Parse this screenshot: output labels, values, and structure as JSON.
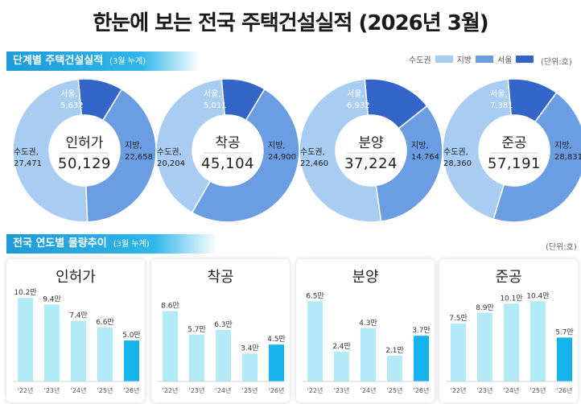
{
  "title": "한눈에 보는 전국 주택건설실적 (2026년 3월)",
  "section1": {
    "title": "단계별 주택건설실적",
    "sub": "(3월 누계)",
    "unit": "(단위:호)"
  },
  "section2": {
    "title": "전국 연도별 물량추이",
    "sub": "(3월 누계)",
    "unit": "(단위:호)"
  },
  "legend": [
    {
      "name": "수도권",
      "color": "#a9ccf2"
    },
    {
      "name": "지방",
      "color": "#6b9de3"
    },
    {
      "name": "서울",
      "color": "#3366c8"
    }
  ],
  "chart_data": [
    {
      "type": "pie",
      "title": "인허가",
      "total": "50,129",
      "slices": [
        {
          "name": "서울",
          "label": "서울,",
          "value": 5632,
          "display": "5,632",
          "color": "#3366c8"
        },
        {
          "name": "지방",
          "label": "지방,",
          "value": 22658,
          "display": "22,658",
          "color": "#6b9de3"
        },
        {
          "name": "수도권",
          "label": "수도권,",
          "value": 27471,
          "display": "27,471",
          "color": "#a9ccf2"
        }
      ]
    },
    {
      "type": "pie",
      "title": "착공",
      "total": "45,104",
      "slices": [
        {
          "name": "서울",
          "label": "서울,",
          "value": 5011,
          "display": "5,011",
          "color": "#3366c8"
        },
        {
          "name": "지방",
          "label": "지방,",
          "value": 24900,
          "display": "24,900",
          "color": "#6b9de3"
        },
        {
          "name": "수도권",
          "label": "수도권,",
          "value": 20204,
          "display": "20,204",
          "color": "#a9ccf2"
        }
      ]
    },
    {
      "type": "pie",
      "title": "분양",
      "total": "37,224",
      "slices": [
        {
          "name": "서울",
          "label": "서울,",
          "value": 6932,
          "display": "6,932",
          "color": "#3366c8"
        },
        {
          "name": "지방",
          "label": "지방,",
          "value": 14764,
          "display": "14,764",
          "color": "#6b9de3"
        },
        {
          "name": "수도권",
          "label": "수도권,",
          "value": 22460,
          "display": "22,460",
          "color": "#a9ccf2"
        }
      ]
    },
    {
      "type": "pie",
      "title": "준공",
      "total": "57,191",
      "slices": [
        {
          "name": "서울",
          "label": "서울,",
          "value": 7381,
          "display": "7,381",
          "color": "#3366c8"
        },
        {
          "name": "지방",
          "label": "지방,",
          "value": 28831,
          "display": "28,831",
          "color": "#6b9de3"
        },
        {
          "name": "수도권",
          "label": "수도권,",
          "value": 28360,
          "display": "28,360",
          "color": "#a9ccf2"
        }
      ]
    },
    {
      "type": "bar",
      "title": "인허가",
      "categories": [
        "'22년",
        "'23년",
        "'24년",
        "'25년",
        "'26년"
      ],
      "values": [
        10.2,
        9.4,
        7.4,
        6.6,
        5.0
      ],
      "labels": [
        "10.2만",
        "9.4만",
        "7.4만",
        "6.6만",
        "5.0만"
      ],
      "ylim": [
        0,
        11
      ]
    },
    {
      "type": "bar",
      "title": "착공",
      "categories": [
        "'22년",
        "'23년",
        "'24년",
        "'25년",
        "'26년"
      ],
      "values": [
        8.6,
        5.7,
        6.3,
        3.4,
        4.5
      ],
      "labels": [
        "8.6만",
        "5.7만",
        "6.3만",
        "3.4만",
        "4.5만"
      ],
      "ylim": [
        0,
        11
      ]
    },
    {
      "type": "bar",
      "title": "분양",
      "categories": [
        "'22년",
        "'23년",
        "'24년",
        "'25년",
        "'26년"
      ],
      "values": [
        6.5,
        2.4,
        4.3,
        2.1,
        3.7
      ],
      "labels": [
        "6.5만",
        "2.4만",
        "4.3만",
        "2.1만",
        "3.7만"
      ],
      "ylim": [
        0,
        7.3
      ]
    },
    {
      "type": "bar",
      "title": "준공",
      "categories": [
        "'22년",
        "'23년",
        "'24년",
        "'25년",
        "'26년"
      ],
      "values": [
        7.5,
        8.9,
        10.1,
        10.4,
        5.7
      ],
      "labels": [
        "7.5만",
        "8.9만",
        "10.1만",
        "10.4만",
        "5.7만"
      ],
      "ylim": [
        0,
        11.7
      ]
    }
  ],
  "bar_colors": {
    "past": "#b2eaf7",
    "current": "#16b4ec"
  }
}
